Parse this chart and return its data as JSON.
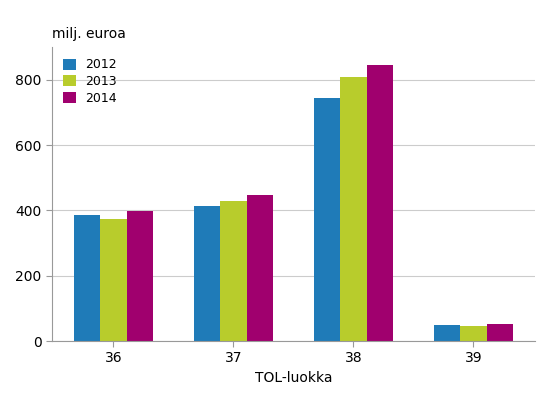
{
  "categories": [
    "36",
    "37",
    "38",
    "39"
  ],
  "series": {
    "2012": [
      385,
      413,
      745,
      48
    ],
    "2013": [
      375,
      430,
      810,
      45
    ],
    "2014": [
      397,
      448,
      845,
      53
    ]
  },
  "colors": {
    "2012": "#1f7bb8",
    "2013": "#b8cc2c",
    "2014": "#a0006e"
  },
  "top_label": "milj. euroa",
  "xlabel": "TOL-luokka",
  "ylim": [
    0,
    900
  ],
  "yticks": [
    0,
    200,
    400,
    600,
    800
  ],
  "legend_labels": [
    "2012",
    "2013",
    "2014"
  ],
  "bar_width": 0.22,
  "background_color": "#ffffff",
  "grid_color": "#cccccc"
}
